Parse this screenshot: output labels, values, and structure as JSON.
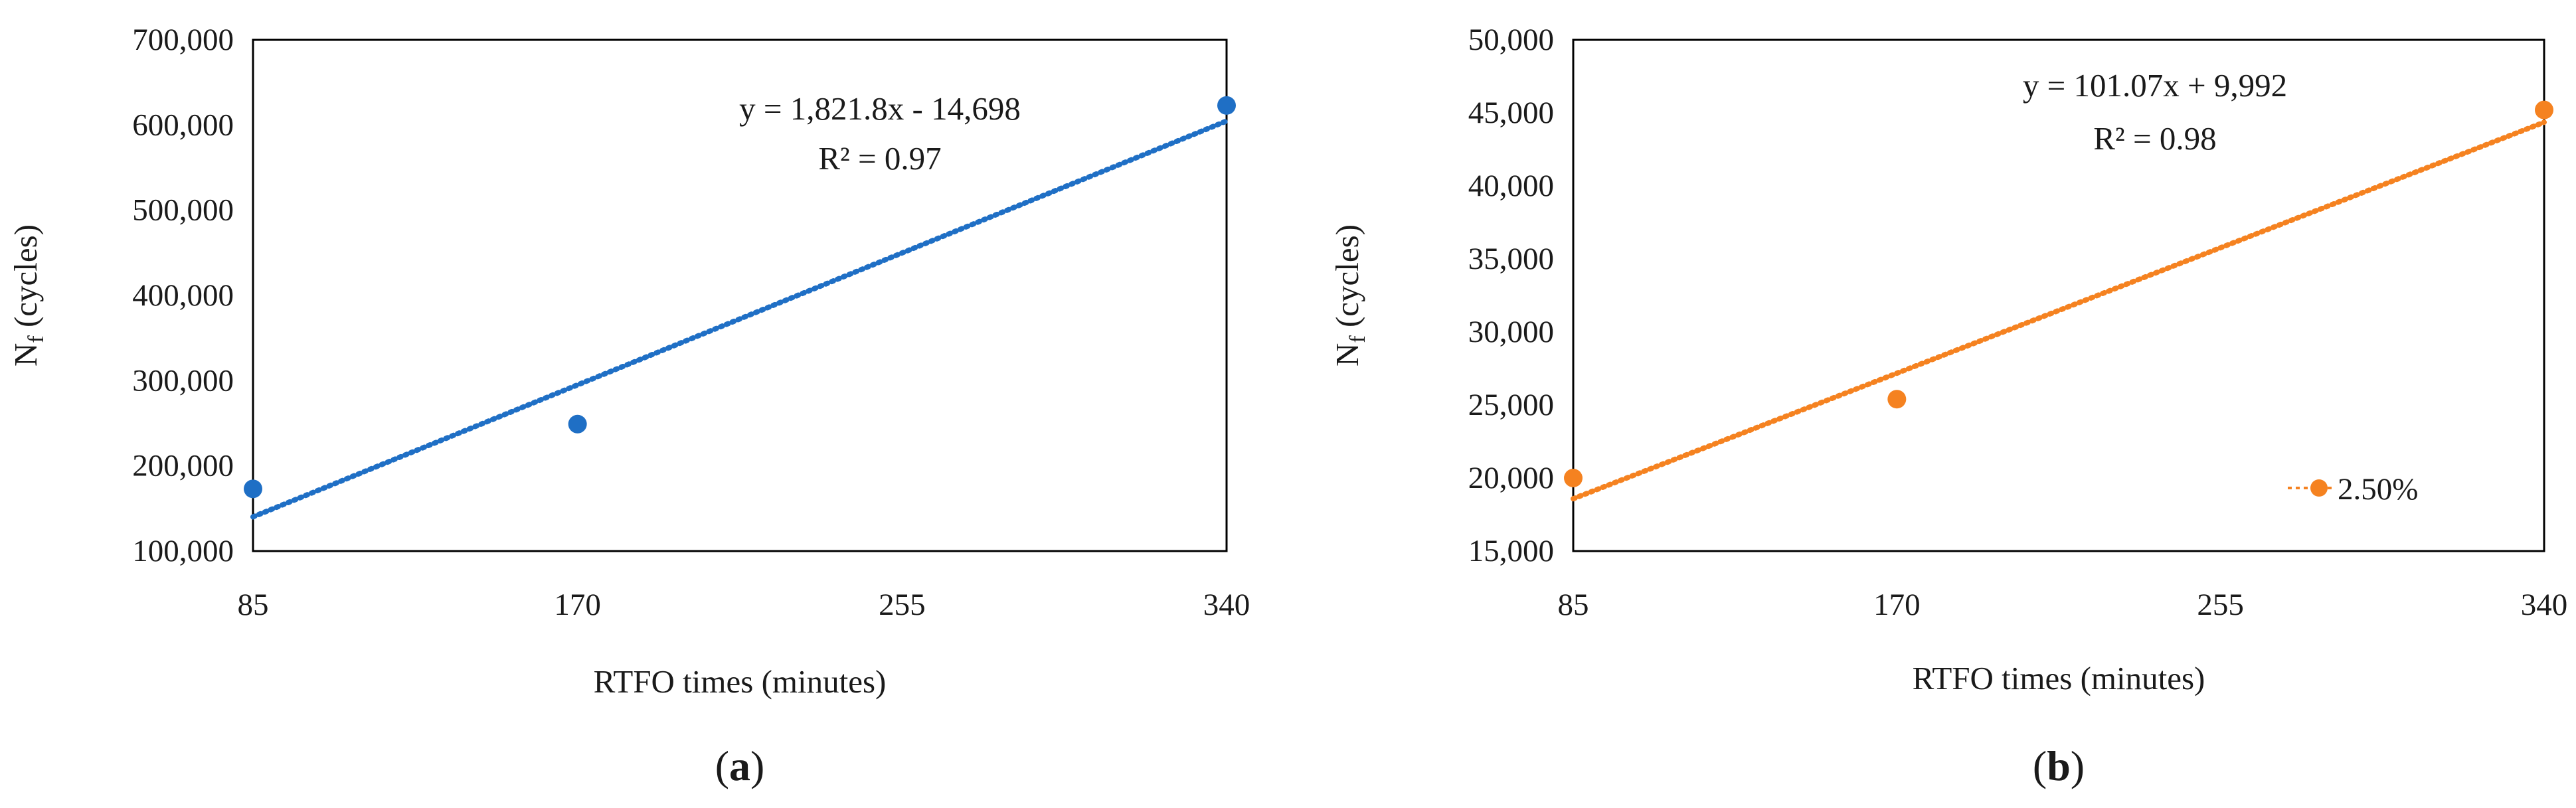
{
  "chart_data": [
    {
      "type": "scatter",
      "panel_label": "a",
      "title": "",
      "xlabel": "RTFO times (minutes)",
      "ylabel_main": "N",
      "ylabel_sub": "f",
      "ylabel_rest": " (cycles)",
      "x_ticks": [
        85,
        170,
        255,
        340
      ],
      "x_tick_labels": [
        "85",
        "170",
        "255",
        "340"
      ],
      "xlim": [
        85,
        340
      ],
      "ylim": [
        100000,
        700000
      ],
      "y_ticks": [
        100000,
        200000,
        300000,
        400000,
        500000,
        600000,
        700000
      ],
      "y_tick_labels": [
        "100,000",
        "200,000",
        "300,000",
        "400,000",
        "500,000",
        "600,000",
        "700,000"
      ],
      "color": "#1f6fc5",
      "legend": null,
      "grid": false,
      "series": [
        {
          "x": [
            85,
            170,
            340
          ],
          "y": [
            173000,
            249000,
            623000
          ]
        }
      ],
      "trendline": {
        "slope": 1821.8,
        "intercept": -14698,
        "equation": "y = 1,821.8x - 14,698",
        "r2": "R² = 0.97"
      }
    },
    {
      "type": "scatter",
      "panel_label": "b",
      "title": "",
      "xlabel": "RTFO times (minutes)",
      "ylabel_main": "N",
      "ylabel_sub": "f",
      "ylabel_rest": " (cycles)",
      "x_ticks": [
        85,
        170,
        255,
        340
      ],
      "x_tick_labels": [
        "85",
        "170",
        "255",
        "340"
      ],
      "xlim": [
        85,
        340
      ],
      "ylim": [
        15000,
        50000
      ],
      "y_ticks": [
        15000,
        20000,
        25000,
        30000,
        35000,
        40000,
        45000,
        50000
      ],
      "y_tick_labels": [
        "15,000",
        "20,000",
        "25,000",
        "30,000",
        "35,000",
        "40,000",
        "45,000",
        "50,000"
      ],
      "color": "#f58220",
      "legend": "bottom-right",
      "grid": false,
      "series": [
        {
          "name": "2.50%",
          "x": [
            85,
            170,
            340
          ],
          "y": [
            20000,
            25400,
            45200
          ]
        }
      ],
      "trendline": {
        "slope": 101.07,
        "intercept": 9992,
        "equation": "y = 101.07x + 9,992",
        "r2": "R² = 0.98"
      }
    }
  ]
}
